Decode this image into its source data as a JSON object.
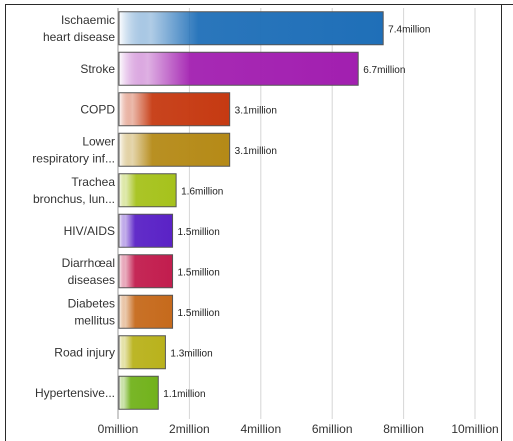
{
  "chart_data": {
    "type": "bar",
    "orientation": "horizontal",
    "categories": [
      [
        "Ischaemic",
        "heart disease"
      ],
      [
        "Stroke"
      ],
      [
        "COPD"
      ],
      [
        "Lower",
        "respiratory inf..."
      ],
      [
        "Trachea",
        "bronchus, lun..."
      ],
      [
        "HIV/AIDS"
      ],
      [
        "Diarrhœal",
        "diseases"
      ],
      [
        "Diabetes",
        "mellitus"
      ],
      [
        "Road injury"
      ],
      [
        "Hypertensive..."
      ]
    ],
    "values": [
      7.4,
      6.7,
      3.1,
      3.1,
      1.6,
      1.5,
      1.5,
      1.5,
      1.3,
      1.1
    ],
    "value_labels": [
      "7.4million",
      "6.7million",
      "3.1million",
      "3.1million",
      "1.6million",
      "1.5million",
      "1.5million",
      "1.5million",
      "1.3million",
      "1.1million"
    ],
    "bar_colors": [
      "#1f6fb8",
      "#a21fb0",
      "#c63a12",
      "#b58a17",
      "#a6c21c",
      "#5a22c6",
      "#c21d4e",
      "#c66a1c",
      "#b9b21c",
      "#72b21c"
    ],
    "xlim": [
      0,
      10
    ],
    "x_ticks": [
      0,
      2,
      4,
      6,
      8,
      10
    ],
    "x_tick_labels": [
      "0million",
      "2million",
      "4million",
      "6million",
      "8million",
      "10million"
    ],
    "grid": true,
    "title": "",
    "xlabel": "",
    "ylabel": ""
  }
}
